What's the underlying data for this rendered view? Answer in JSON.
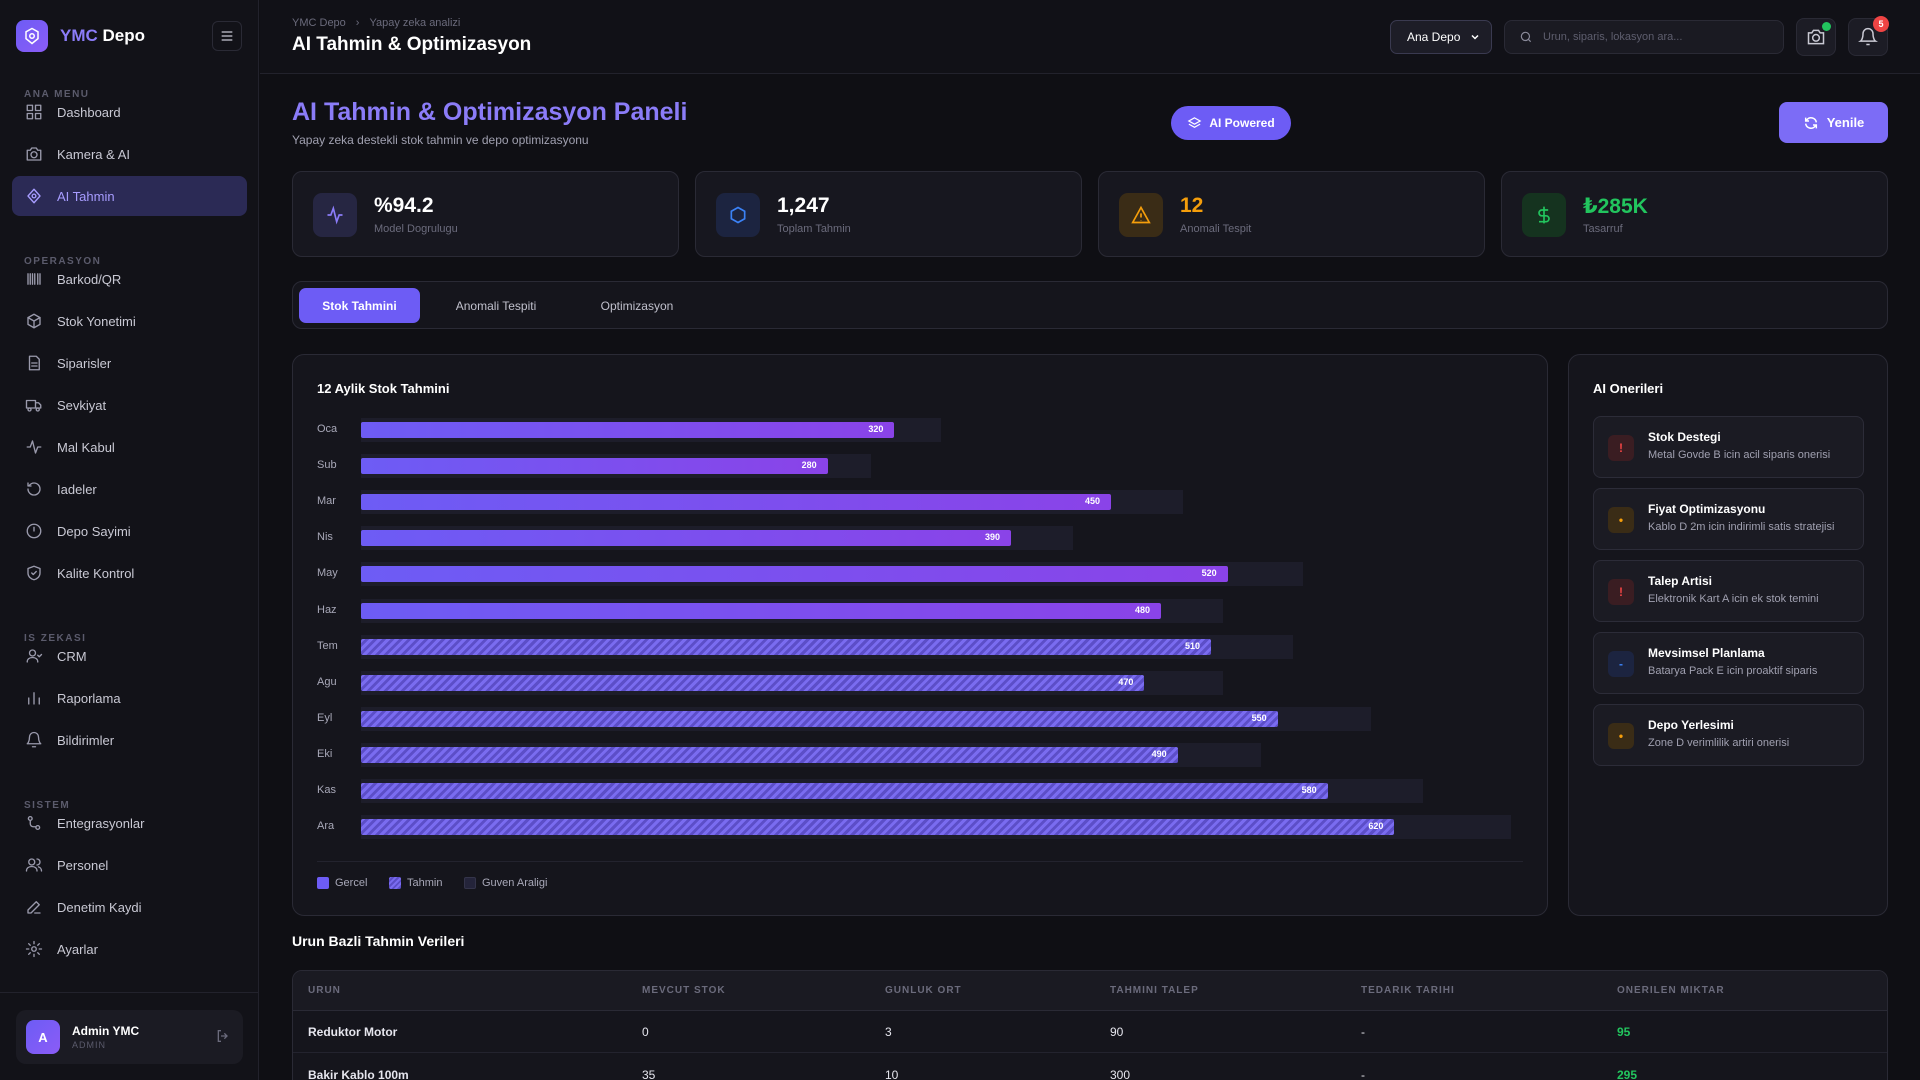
{
  "brand": {
    "name_accent": "YMC",
    "name_rest": "Depo"
  },
  "sidebar": {
    "sections": {
      "main": "ANA MENU",
      "ops": "OPERASYON",
      "bi": "IS ZEKASI",
      "system": "SISTEM"
    },
    "items": [
      {
        "label": "Dashboard",
        "icon": "grid-icon"
      },
      {
        "label": "Kamera & AI",
        "icon": "camera-icon"
      },
      {
        "label": "AI Tahmin",
        "icon": "brain-icon",
        "active": true
      },
      {
        "label": "Barkod/QR",
        "icon": "barcode-icon"
      },
      {
        "label": "Stok Yonetimi",
        "icon": "box-icon"
      },
      {
        "label": "Siparisler",
        "icon": "document-icon"
      },
      {
        "label": "Sevkiyat",
        "icon": "truck-icon"
      },
      {
        "label": "Mal Kabul",
        "icon": "activity-icon"
      },
      {
        "label": "Iadeler",
        "icon": "return-icon"
      },
      {
        "label": "Depo Sayimi",
        "icon": "clock-icon"
      },
      {
        "label": "Kalite Kontrol",
        "icon": "shield-icon"
      },
      {
        "label": "CRM",
        "icon": "users-icon"
      },
      {
        "label": "Raporlama",
        "icon": "bar-chart-icon"
      },
      {
        "label": "Bildirimler",
        "icon": "bell-icon"
      },
      {
        "label": "Entegrasyonlar",
        "icon": "link-icon"
      },
      {
        "label": "Personel",
        "icon": "people-icon"
      },
      {
        "label": "Denetim Kaydi",
        "icon": "pen-icon"
      },
      {
        "label": "Ayarlar",
        "icon": "gear-icon"
      }
    ],
    "user": {
      "initial": "A",
      "name": "Admin YMC",
      "role": "ADMIN"
    }
  },
  "header": {
    "breadcrumb": [
      "YMC Depo",
      "Yapay zeka analizi"
    ],
    "title": "AI Tahmin & Optimizasyon",
    "depot": "Ana Depo",
    "search_placeholder": "Urun, siparis, lokasyon ara...",
    "notification_count": "5"
  },
  "hero": {
    "title": "AI Tahmin & Optimizasyon Paneli",
    "subtitle": "Yapay zeka destekli stok tahmin ve depo optimizasyonu",
    "badge": "AI Powered",
    "refresh": "Yenile"
  },
  "stats": [
    {
      "value": "%94.2",
      "label": "Model Dogrulugu",
      "color": "#8b7cf8"
    },
    {
      "value": "1,247",
      "label": "Toplam Tahmin",
      "color": "#3b82f6"
    },
    {
      "value": "12",
      "label": "Anomali Tespit",
      "color": "#f59e0b"
    },
    {
      "value": "₺285K",
      "label": "Tasarruf",
      "color": "#22c55e"
    }
  ],
  "tabs": [
    "Stok Tahmini",
    "Anomali Tespiti",
    "Optimizasyon"
  ],
  "chart": {
    "title": "12 Aylik Stok Tahmini",
    "legend": [
      "Gercel",
      "Tahmin",
      "Guven Araligi"
    ]
  },
  "chart_data": {
    "type": "bar",
    "orientation": "horizontal",
    "title": "12 Aylik Stok Tahmini",
    "categories": [
      "Oca",
      "Sub",
      "Mar",
      "Nis",
      "May",
      "Haz",
      "Tem",
      "Agu",
      "Eyl",
      "Eki",
      "Kas",
      "Ara"
    ],
    "values": [
      320,
      280,
      450,
      390,
      520,
      480,
      510,
      470,
      550,
      490,
      580,
      620
    ],
    "kinds": [
      "actual",
      "actual",
      "actual",
      "actual",
      "actual",
      "actual",
      "forecast",
      "forecast",
      "forecast",
      "forecast",
      "forecast",
      "forecast"
    ],
    "confidence_upper": [
      348,
      306,
      493,
      427,
      565,
      517,
      559,
      517,
      606,
      540,
      637,
      690
    ],
    "xlim": [
      0,
      690
    ]
  },
  "recommendations": {
    "title": "AI Onerileri",
    "items": [
      {
        "title": "Stok Destegi",
        "desc": "Metal Govde B icin acil siparis onerisi",
        "symbol": "!",
        "color": "#ef4444",
        "bg": "#3a1d22"
      },
      {
        "title": "Fiyat Optimizasyonu",
        "desc": "Kablo D 2m icin indirimli satis stratejisi",
        "symbol": "•",
        "color": "#f59e0b",
        "bg": "#3a2c16"
      },
      {
        "title": "Talep Artisi",
        "desc": "Elektronik Kart A icin ek stok temini",
        "symbol": "!",
        "color": "#ef4444",
        "bg": "#3a1d22"
      },
      {
        "title": "Mevsimsel Planlama",
        "desc": "Batarya Pack E icin proaktif siparis",
        "symbol": "-",
        "color": "#3b82f6",
        "bg": "#1c2440"
      },
      {
        "title": "Depo Yerlesimi",
        "desc": "Zone D verimlilik artiri onerisi",
        "symbol": "•",
        "color": "#f59e0b",
        "bg": "#3a2c16"
      }
    ]
  },
  "table": {
    "title": "Urun Bazli Tahmin Verileri",
    "columns": [
      "URUN",
      "MEVCUT STOK",
      "GUNLUK ORT",
      "TAHMINI TALEP",
      "TEDARIK TARIHI",
      "ONERILEN MIKTAR"
    ],
    "rows": [
      [
        "Reduktor Motor",
        "0",
        "3",
        "90",
        "-",
        "95"
      ],
      [
        "Bakir Kablo 100m",
        "35",
        "10",
        "300",
        "-",
        "295"
      ]
    ]
  }
}
